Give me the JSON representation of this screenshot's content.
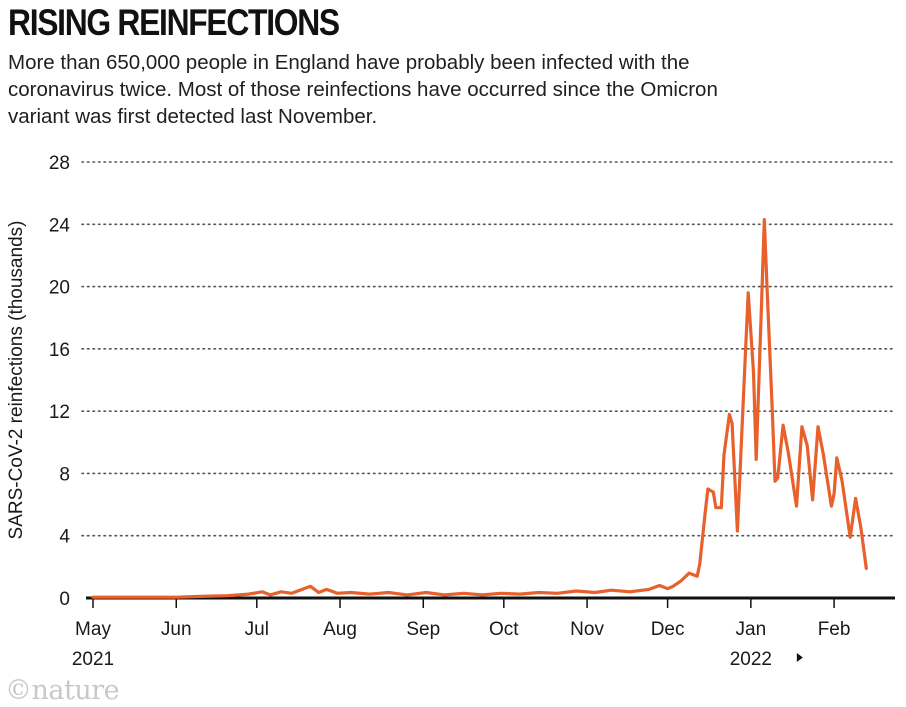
{
  "header": {
    "title": "RISING REINFECTIONS",
    "subtitle_line1": "More than 650,000 people in England have probably been infected with the",
    "subtitle_line2": "coronavirus twice. Most of those reinfections have occurred since the Omicron",
    "subtitle_line3": "variant was first detected last November."
  },
  "logo": {
    "text": "©nature"
  },
  "colors": {
    "series": "#e8602c",
    "axis": "#111111",
    "grid": "#555555"
  },
  "chart_data": {
    "type": "line",
    "title": "RISING REINFECTIONS",
    "ylabel": "SARS-CoV-2 reinfections (thousands)",
    "xlabel": "",
    "ylim": [
      0,
      28
    ],
    "yticks": [
      0,
      4,
      8,
      12,
      16,
      20,
      24,
      28
    ],
    "xlim": [
      "2021-05-01",
      "2022-02-14"
    ],
    "grid": "horizontal dotted",
    "x_ticks": [
      {
        "date": "2021-05-01",
        "label": "May",
        "year": "2021"
      },
      {
        "date": "2021-06-01",
        "label": "Jun"
      },
      {
        "date": "2021-07-01",
        "label": "Jul"
      },
      {
        "date": "2021-08-01",
        "label": "Aug"
      },
      {
        "date": "2021-09-01",
        "label": "Sep"
      },
      {
        "date": "2021-10-01",
        "label": "Oct"
      },
      {
        "date": "2021-11-01",
        "label": "Nov"
      },
      {
        "date": "2021-12-01",
        "label": "Dec"
      },
      {
        "date": "2022-01-01",
        "label": "Jan",
        "year": "2022"
      },
      {
        "date": "2022-02-01",
        "label": "Feb"
      }
    ],
    "series": [
      {
        "points": [
          [
            "2021-05-01",
            0.05
          ],
          [
            "2021-05-15",
            0.05
          ],
          [
            "2021-06-01",
            0.05
          ],
          [
            "2021-06-10",
            0.1
          ],
          [
            "2021-06-20",
            0.15
          ],
          [
            "2021-06-28",
            0.25
          ],
          [
            "2021-07-03",
            0.4
          ],
          [
            "2021-07-06",
            0.2
          ],
          [
            "2021-07-10",
            0.4
          ],
          [
            "2021-07-14",
            0.3
          ],
          [
            "2021-07-17",
            0.5
          ],
          [
            "2021-07-21",
            0.75
          ],
          [
            "2021-07-24",
            0.35
          ],
          [
            "2021-07-27",
            0.55
          ],
          [
            "2021-07-31",
            0.3
          ],
          [
            "2021-08-05",
            0.35
          ],
          [
            "2021-08-12",
            0.25
          ],
          [
            "2021-08-19",
            0.35
          ],
          [
            "2021-08-26",
            0.2
          ],
          [
            "2021-09-02",
            0.35
          ],
          [
            "2021-09-09",
            0.2
          ],
          [
            "2021-09-16",
            0.3
          ],
          [
            "2021-09-23",
            0.2
          ],
          [
            "2021-09-30",
            0.3
          ],
          [
            "2021-10-07",
            0.25
          ],
          [
            "2021-10-14",
            0.35
          ],
          [
            "2021-10-21",
            0.3
          ],
          [
            "2021-10-28",
            0.45
          ],
          [
            "2021-11-04",
            0.35
          ],
          [
            "2021-11-10",
            0.5
          ],
          [
            "2021-11-17",
            0.4
          ],
          [
            "2021-11-24",
            0.55
          ],
          [
            "2021-11-28",
            0.8
          ],
          [
            "2021-12-01",
            0.6
          ],
          [
            "2021-12-03",
            0.75
          ],
          [
            "2021-12-06",
            1.1
          ],
          [
            "2021-12-09",
            1.6
          ],
          [
            "2021-12-12",
            1.4
          ],
          [
            "2021-12-13",
            2.2
          ],
          [
            "2021-12-15",
            5.5
          ],
          [
            "2021-12-16",
            7.0
          ],
          [
            "2021-12-18",
            6.8
          ],
          [
            "2021-12-19",
            5.8
          ],
          [
            "2021-12-21",
            5.8
          ],
          [
            "2021-12-22",
            9.2
          ],
          [
            "2021-12-24",
            11.8
          ],
          [
            "2021-12-25",
            11.2
          ],
          [
            "2021-12-27",
            4.3
          ],
          [
            "2021-12-29",
            12.0
          ],
          [
            "2021-12-31",
            19.6
          ],
          [
            "2022-01-02",
            14.5
          ],
          [
            "2022-01-03",
            8.9
          ],
          [
            "2022-01-05",
            19.0
          ],
          [
            "2022-01-06",
            24.3
          ],
          [
            "2022-01-07",
            20.0
          ],
          [
            "2022-01-09",
            12.0
          ],
          [
            "2022-01-10",
            7.5
          ],
          [
            "2022-01-11",
            7.7
          ],
          [
            "2022-01-13",
            11.1
          ],
          [
            "2022-01-15",
            9.3
          ],
          [
            "2022-01-18",
            5.9
          ],
          [
            "2022-01-20",
            11.0
          ],
          [
            "2022-01-22",
            9.8
          ],
          [
            "2022-01-24",
            6.3
          ],
          [
            "2022-01-26",
            11.0
          ],
          [
            "2022-01-28",
            9.2
          ],
          [
            "2022-01-31",
            5.9
          ],
          [
            "2022-02-01",
            6.7
          ],
          [
            "2022-02-02",
            9.0
          ],
          [
            "2022-02-04",
            7.5
          ],
          [
            "2022-02-07",
            3.9
          ],
          [
            "2022-02-09",
            6.4
          ],
          [
            "2022-02-11",
            4.5
          ],
          [
            "2022-02-13",
            1.9
          ]
        ]
      }
    ]
  }
}
